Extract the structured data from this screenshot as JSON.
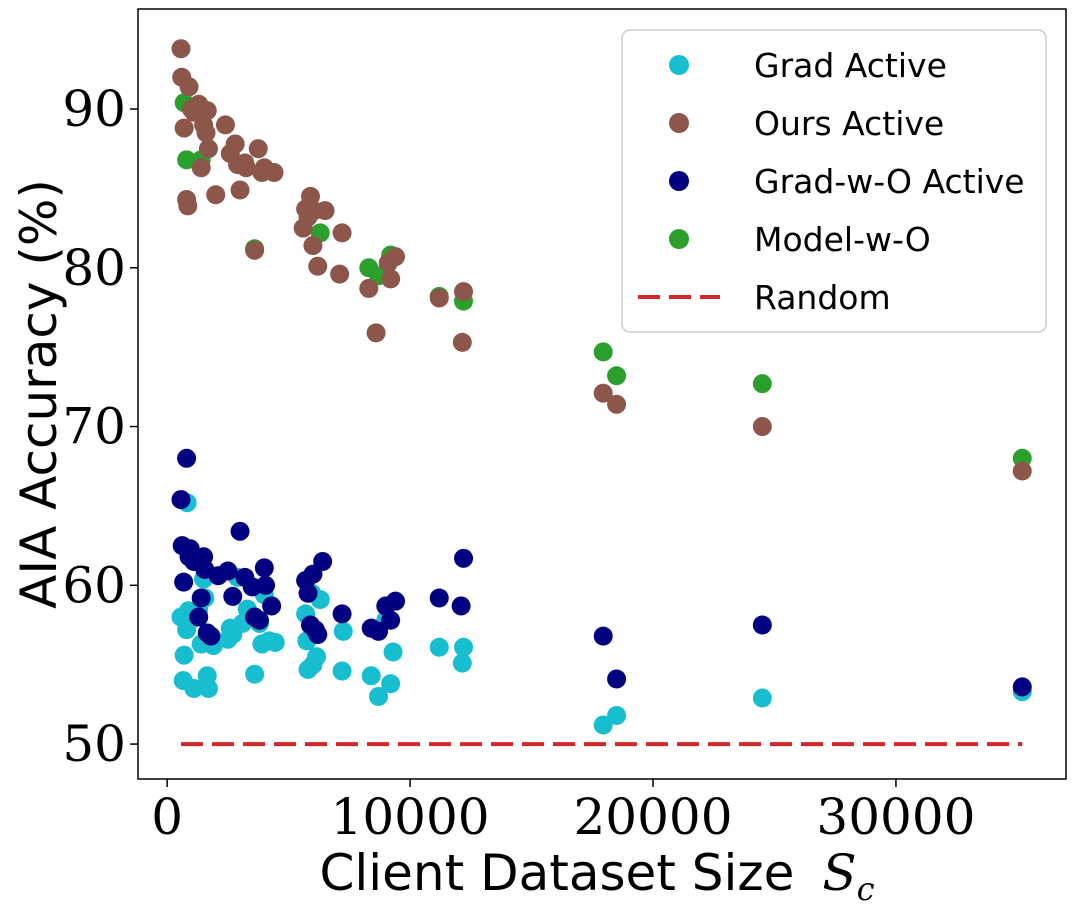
{
  "chart_data": {
    "type": "scatter",
    "title": "",
    "xlabel": "Client Dataset Size",
    "xlabel_symbol": "S",
    "xlabel_subscript": "c",
    "ylabel": "AIA Accuracy (%)",
    "xlim": [
      -1200,
      37000
    ],
    "ylim": [
      47.8,
      96.3
    ],
    "xticks": [
      0,
      10000,
      20000,
      30000
    ],
    "xtick_labels": [
      "0",
      "10000",
      "20000",
      "30000"
    ],
    "yticks": [
      50,
      60,
      70,
      80,
      90
    ],
    "ytick_labels": [
      "50",
      "60",
      "70",
      "80",
      "90"
    ],
    "grid": false,
    "legend_position": "top-right",
    "series": [
      {
        "name": "Grad Active",
        "color": "#17becf",
        "kind": "scatter",
        "points": [
          [
            570,
            58.0
          ],
          [
            660,
            54.0
          ],
          [
            700,
            55.6
          ],
          [
            800,
            57.2
          ],
          [
            820,
            65.2
          ],
          [
            880,
            58.4
          ],
          [
            950,
            57.8
          ],
          [
            1100,
            53.5
          ],
          [
            1200,
            58.1
          ],
          [
            1300,
            58.5
          ],
          [
            1400,
            56.3
          ],
          [
            1500,
            60.4
          ],
          [
            1550,
            59.2
          ],
          [
            1650,
            54.3
          ],
          [
            1700,
            53.5
          ],
          [
            1900,
            56.2
          ],
          [
            2500,
            56.6
          ],
          [
            2600,
            57.3
          ],
          [
            2700,
            56.9
          ],
          [
            2900,
            60.5
          ],
          [
            3100,
            57.6
          ],
          [
            3300,
            58.5
          ],
          [
            3600,
            54.4
          ],
          [
            3800,
            57.6
          ],
          [
            3900,
            56.3
          ],
          [
            4000,
            59.4
          ],
          [
            4200,
            56.5
          ],
          [
            4450,
            56.4
          ],
          [
            5700,
            58.2
          ],
          [
            5750,
            56.5
          ],
          [
            5800,
            54.7
          ],
          [
            5950,
            59.5
          ],
          [
            6000,
            55.0
          ],
          [
            6150,
            55.5
          ],
          [
            6300,
            59.1
          ],
          [
            7200,
            54.6
          ],
          [
            7250,
            57.1
          ],
          [
            8400,
            54.3
          ],
          [
            8700,
            53.0
          ],
          [
            9000,
            57.8
          ],
          [
            9300,
            55.8
          ],
          [
            9200,
            53.8
          ],
          [
            11200,
            56.1
          ],
          [
            12200,
            56.1
          ],
          [
            12150,
            55.1
          ],
          [
            17950,
            51.2
          ],
          [
            18500,
            51.8
          ],
          [
            24500,
            52.9
          ],
          [
            35200,
            53.3
          ]
        ]
      },
      {
        "name": "Ours Active",
        "color": "#8c564b",
        "kind": "scatter",
        "points": [
          [
            570,
            93.8
          ],
          [
            600,
            92.0
          ],
          [
            700,
            88.8
          ],
          [
            800,
            84.3
          ],
          [
            850,
            83.9
          ],
          [
            900,
            91.4
          ],
          [
            1000,
            90.0
          ],
          [
            1100,
            89.8
          ],
          [
            1300,
            90.3
          ],
          [
            1400,
            86.3
          ],
          [
            1500,
            89.0
          ],
          [
            1600,
            88.5
          ],
          [
            1650,
            89.9
          ],
          [
            1700,
            87.5
          ],
          [
            2000,
            84.6
          ],
          [
            2400,
            89.0
          ],
          [
            2600,
            87.2
          ],
          [
            2800,
            87.8
          ],
          [
            2900,
            86.5
          ],
          [
            3000,
            84.9
          ],
          [
            3200,
            86.6
          ],
          [
            3250,
            86.3
          ],
          [
            3600,
            81.1
          ],
          [
            3750,
            87.5
          ],
          [
            3900,
            86.0
          ],
          [
            4000,
            86.3
          ],
          [
            4400,
            86.0
          ],
          [
            5600,
            82.5
          ],
          [
            5700,
            83.7
          ],
          [
            5800,
            83.2
          ],
          [
            5900,
            84.5
          ],
          [
            6000,
            81.4
          ],
          [
            6050,
            83.6
          ],
          [
            6200,
            80.1
          ],
          [
            6500,
            83.6
          ],
          [
            7100,
            79.6
          ],
          [
            7200,
            82.2
          ],
          [
            8300,
            78.7
          ],
          [
            8600,
            75.9
          ],
          [
            9100,
            80.3
          ],
          [
            9200,
            79.3
          ],
          [
            9400,
            80.7
          ],
          [
            11200,
            78.1
          ],
          [
            12200,
            78.5
          ],
          [
            12150,
            75.3
          ],
          [
            17950,
            72.1
          ],
          [
            18500,
            71.4
          ],
          [
            24500,
            70.0
          ],
          [
            35200,
            67.2
          ]
        ]
      },
      {
        "name": "Grad-w-O Active",
        "color": "#000080",
        "kind": "scatter",
        "points": [
          [
            570,
            65.4
          ],
          [
            620,
            62.5
          ],
          [
            680,
            60.2
          ],
          [
            800,
            68.0
          ],
          [
            900,
            61.8
          ],
          [
            950,
            62.3
          ],
          [
            1100,
            61.5
          ],
          [
            1300,
            58.0
          ],
          [
            1400,
            59.2
          ],
          [
            1500,
            61.8
          ],
          [
            1550,
            61.0
          ],
          [
            1650,
            57.0
          ],
          [
            1800,
            56.8
          ],
          [
            2100,
            60.6
          ],
          [
            2500,
            60.9
          ],
          [
            2700,
            59.3
          ],
          [
            3000,
            63.4
          ],
          [
            3200,
            60.5
          ],
          [
            3500,
            59.9
          ],
          [
            3600,
            58.0
          ],
          [
            3800,
            57.8
          ],
          [
            4000,
            61.1
          ],
          [
            4050,
            60.0
          ],
          [
            4300,
            58.7
          ],
          [
            5700,
            60.3
          ],
          [
            5800,
            59.5
          ],
          [
            5900,
            57.5
          ],
          [
            6000,
            60.7
          ],
          [
            6100,
            57.2
          ],
          [
            6200,
            56.9
          ],
          [
            6400,
            61.5
          ],
          [
            7200,
            58.2
          ],
          [
            8400,
            57.3
          ],
          [
            8700,
            57.1
          ],
          [
            9000,
            58.7
          ],
          [
            9200,
            57.8
          ],
          [
            9400,
            59.0
          ],
          [
            11200,
            59.2
          ],
          [
            12200,
            61.7
          ],
          [
            12100,
            58.7
          ],
          [
            17950,
            56.8
          ],
          [
            18500,
            54.1
          ],
          [
            24500,
            57.5
          ],
          [
            35200,
            53.6
          ]
        ]
      },
      {
        "name": "Model-w-O",
        "color": "#2ca02c",
        "kind": "scatter",
        "points": [
          [
            700,
            90.4
          ],
          [
            800,
            86.8
          ],
          [
            1400,
            86.8
          ],
          [
            3600,
            81.2
          ],
          [
            6300,
            82.2
          ],
          [
            8300,
            80.0
          ],
          [
            8700,
            79.5
          ],
          [
            9200,
            80.8
          ],
          [
            11200,
            78.2
          ],
          [
            12200,
            77.9
          ],
          [
            17950,
            74.7
          ],
          [
            18500,
            73.2
          ],
          [
            24500,
            72.7
          ],
          [
            35200,
            68.0
          ]
        ]
      },
      {
        "name": "Random",
        "color": "#d62728",
        "kind": "line",
        "points": [
          [
            570,
            50.0
          ],
          [
            35200,
            50.0
          ]
        ]
      }
    ]
  }
}
